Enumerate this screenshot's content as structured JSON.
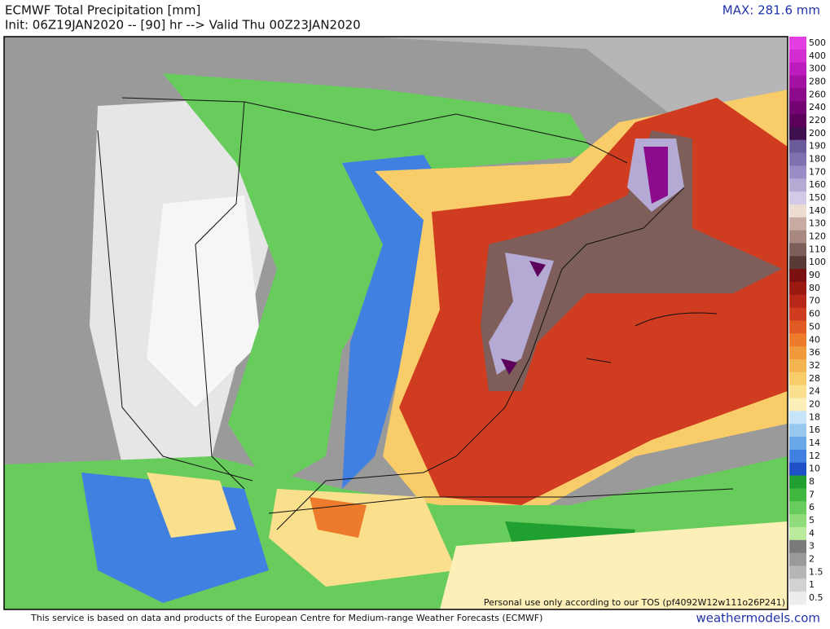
{
  "header": {
    "title": "ECMWF Total Precipitation [mm]",
    "subtitle": "Init: 06Z19JAN2020 -- [90] hr --> Valid Thu 00Z23JAN2020",
    "max": "MAX: 281.6 mm"
  },
  "map": {
    "note": "Personal use only according to our TOS (pf4092W12w111o26P241)"
  },
  "colorbar": {
    "levels": [
      {
        "label": "500",
        "color": "#e23ee2"
      },
      {
        "label": "400",
        "color": "#d22cd2"
      },
      {
        "label": "300",
        "color": "#bb1cbb"
      },
      {
        "label": "280",
        "color": "#a412a4"
      },
      {
        "label": "260",
        "color": "#8c0a8c"
      },
      {
        "label": "240",
        "color": "#740474"
      },
      {
        "label": "220",
        "color": "#5c005c"
      },
      {
        "label": "200",
        "color": "#40104e"
      },
      {
        "label": "190",
        "color": "#6a5a9a"
      },
      {
        "label": "180",
        "color": "#8070b0"
      },
      {
        "label": "170",
        "color": "#9a8cc4"
      },
      {
        "label": "160",
        "color": "#b4aad4"
      },
      {
        "label": "150",
        "color": "#d2cae6"
      },
      {
        "label": "140",
        "color": "#ecdcd2"
      },
      {
        "label": "130",
        "color": "#c8aca4"
      },
      {
        "label": "120",
        "color": "#a88880"
      },
      {
        "label": "110",
        "color": "#7e5e5a"
      },
      {
        "label": "100",
        "color": "#5a3a36"
      },
      {
        "label": "90",
        "color": "#7a1010"
      },
      {
        "label": "80",
        "color": "#9a1a12"
      },
      {
        "label": "70",
        "color": "#b82818"
      },
      {
        "label": "60",
        "color": "#d03c20"
      },
      {
        "label": "50",
        "color": "#e05a24"
      },
      {
        "label": "40",
        "color": "#ec7c2c"
      },
      {
        "label": "36",
        "color": "#f09a3c"
      },
      {
        "label": "32",
        "color": "#f4b450"
      },
      {
        "label": "28",
        "color": "#f8cc68"
      },
      {
        "label": "24",
        "color": "#fae08c"
      },
      {
        "label": "20",
        "color": "#fcf0b8"
      },
      {
        "label": "18",
        "color": "#c8e4f8"
      },
      {
        "label": "16",
        "color": "#96c8f0"
      },
      {
        "label": "14",
        "color": "#68a8e8"
      },
      {
        "label": "12",
        "color": "#4080e0"
      },
      {
        "label": "10",
        "color": "#2050c8"
      },
      {
        "label": "8",
        "color": "#20a030"
      },
      {
        "label": "7",
        "color": "#40b840"
      },
      {
        "label": "6",
        "color": "#68cc5c"
      },
      {
        "label": "5",
        "color": "#90dc7c"
      },
      {
        "label": "4",
        "color": "#b8ec9c"
      },
      {
        "label": "3",
        "color": "#7a7a7a"
      },
      {
        "label": "2",
        "color": "#9a9a9a"
      },
      {
        "label": "1.5",
        "color": "#b6b6b6"
      },
      {
        "label": "1",
        "color": "#d2d2d2"
      },
      {
        "label": "0.5",
        "color": "#ededed"
      }
    ]
  },
  "footer": {
    "credit": "This service is based on data and products of the European Centre for Medium-range Weather Forecasts (ECMWF)",
    "site": "weathermodels.com"
  }
}
